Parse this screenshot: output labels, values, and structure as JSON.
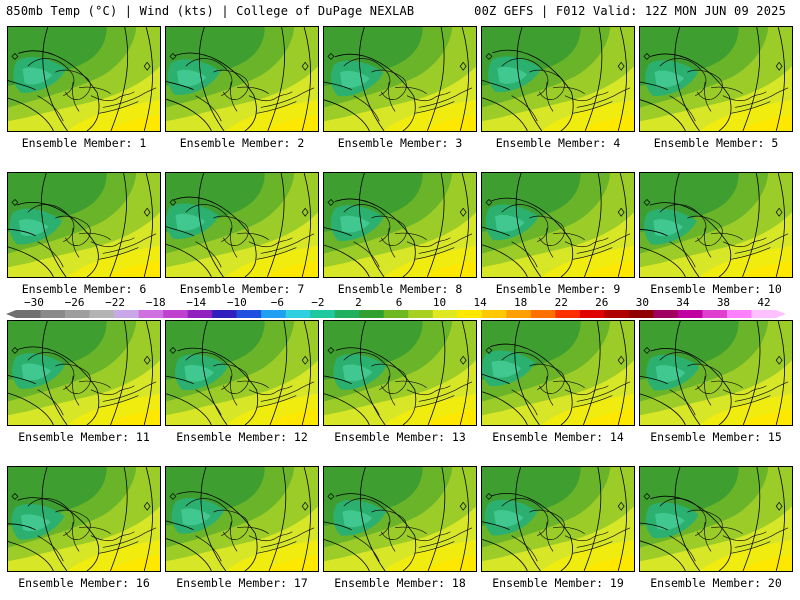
{
  "header": {
    "left": "850mb Temp (°C) | Wind (kts) | College of DuPage NEXLAB",
    "right": "00Z GEFS | F012 Valid: 12Z MON JUN 09 2025"
  },
  "members": [
    "Ensemble Member: 1",
    "Ensemble Member: 2",
    "Ensemble Member: 3",
    "Ensemble Member: 4",
    "Ensemble Member: 5",
    "Ensemble Member: 6",
    "Ensemble Member: 7",
    "Ensemble Member: 8",
    "Ensemble Member: 9",
    "Ensemble Member: 10",
    "Ensemble Member: 11",
    "Ensemble Member: 12",
    "Ensemble Member: 13",
    "Ensemble Member: 14",
    "Ensemble Member: 15",
    "Ensemble Member: 16",
    "Ensemble Member: 17",
    "Ensemble Member: 18",
    "Ensemble Member: 19",
    "Ensemble Member: 20"
  ],
  "colorbar": {
    "tick_labels": [
      "-30",
      "-26",
      "-22",
      "-18",
      "-14",
      "-10",
      "-6",
      "-2",
      "2",
      "6",
      "10",
      "14",
      "18",
      "22",
      "26",
      "30",
      "34",
      "38",
      "42"
    ],
    "colors": [
      "#707070",
      "#8a8a8a",
      "#9e9e9e",
      "#b4b4b4",
      "#c8a8e8",
      "#d070e0",
      "#c040d0",
      "#9020c0",
      "#3020c0",
      "#2050e0",
      "#20a0f0",
      "#30d0e0",
      "#20c8a0",
      "#20b060",
      "#30a030",
      "#70b820",
      "#a8d020",
      "#e0e820",
      "#ffe800",
      "#ffc800",
      "#ffa000",
      "#ff7000",
      "#ff3000",
      "#e00000",
      "#b00000",
      "#900000",
      "#a00060",
      "#c000a0",
      "#e040d0",
      "#ff80ff",
      "#ffc0ff"
    ]
  }
}
